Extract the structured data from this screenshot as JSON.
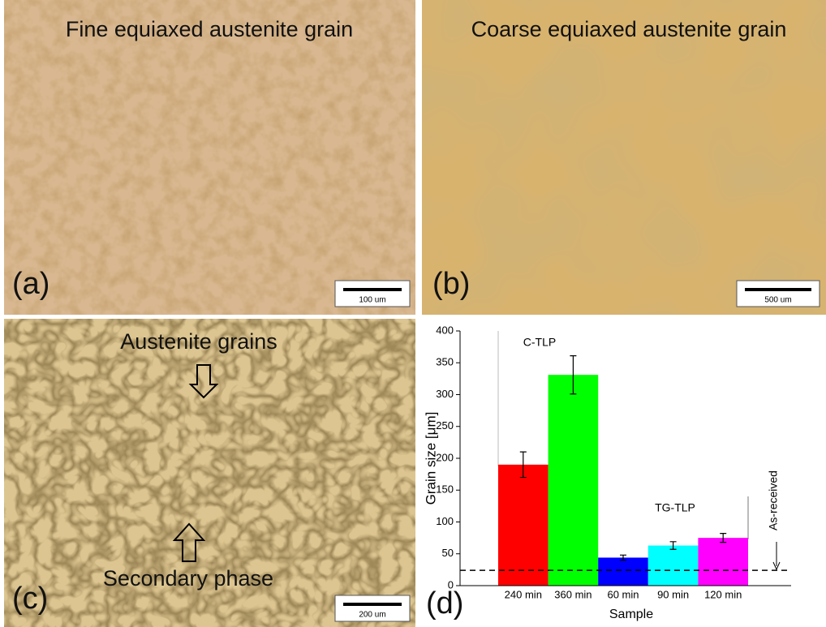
{
  "panels": [
    {
      "label": "(a)",
      "caption": "Fine equiaxed austenite grain",
      "scale_bar": "100 um"
    },
    {
      "label": "(b)",
      "caption": "Coarse equiaxed austenite grain",
      "scale_bar": "500 um"
    },
    {
      "label": "(c)",
      "captions": [
        "Austenite grains",
        "Secondary phase"
      ],
      "scale_bar": "200 um"
    }
  ],
  "chart_data": {
    "type": "bar",
    "panel_label": "(d)",
    "xlabel": "Sample",
    "ylabel": "Grain size [μm]",
    "categories": [
      "240 min",
      "360 min",
      "60 min",
      "90 min",
      "120 min"
    ],
    "values": [
      190,
      331,
      44,
      63,
      75
    ],
    "errors": [
      20,
      30,
      4,
      6,
      7
    ],
    "colors": [
      "#ff0000",
      "#00ff00",
      "#0000ff",
      "#00ffff",
      "#ff00ff"
    ],
    "ylim": [
      0,
      400
    ],
    "yticks": [
      0,
      50,
      100,
      150,
      200,
      250,
      300,
      350,
      400
    ],
    "annotations": [
      "C-TLP",
      "TG-TLP"
    ],
    "reference_line": {
      "label": "As-received",
      "value": 24
    }
  }
}
